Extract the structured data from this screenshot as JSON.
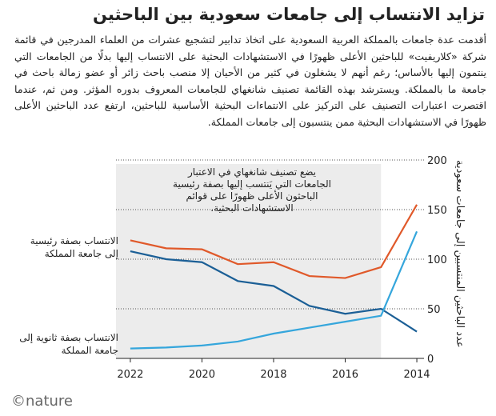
{
  "chart_data": {
    "type": "line",
    "title": "تزايد الانتساب إلى جامعات سعودية بين الباحثين",
    "description": "أقدمت عدة جامعات بالمملكة العربية السعودية على اتخاذ تدابير لتشجيع عشرات من العلماء المدرجين في قائمة شركة «كلاريفيت» للباحثين الأعلى ظهورًا في الاستشهادات البحثية على الانتساب إليها بدلًا من الجامعات التي ينتمون إليها بالأساس؛ رغم أنهم لا يشغلون في كثير من الأحيان إلا منصب باحث زائر أو عضو زمالة باحث في جامعة ما بالمملكة. ويسترشد بهذه القائمة تصنيف شانغهاي للجامعات المعروف بدوره المؤثر. ومن ثم، عندما اقتصرت اعتبارات التصنيف على التركيز على الانتماءات البحثية الأساسية للباحثين، ارتفع عدد الباحثين الأعلى ظهورًا في الاستشهادات البحثية ممن ينتسبون إلى جامعات المملكة.",
    "annotation": "يضع تصنيف شانغهاي في الاعتبار الجامعات التي يَنتسب إليها بصفة رئيسية الباحثون الأعلى ظهورًا على قوائم الاستشهادات البحثية.",
    "y_label": "عدد الباحثين المنتسبين إلى جامعات سعودية",
    "logo": "©nature",
    "x": [
      2014,
      2015,
      2016,
      2017,
      2018,
      2019,
      2020,
      2021,
      2022
    ],
    "series": [
      {
        "color": "#e0592a",
        "values": [
          155,
          92,
          81,
          83,
          97,
          95,
          110,
          111,
          119
        ]
      },
      {
        "name": "الانتساب بصفة رئيسية إلى جامعة المملكة",
        "color": "#1b5f96",
        "values": [
          27,
          50,
          45,
          53,
          73,
          78,
          97,
          100,
          108
        ]
      },
      {
        "name": "الانتساب بصفة ثانوية إلى جامعة المملكة",
        "color": "#35a6dc",
        "values": [
          128,
          43,
          37,
          31,
          25,
          17,
          13,
          11,
          10
        ]
      }
    ],
    "shade_from": 2015,
    "shade_color": "#ececec",
    "xlim": [
      2022.4,
      2013.8
    ],
    "xticks": [
      2022,
      2020,
      2018,
      2016,
      2014
    ],
    "ylim": [
      0,
      200
    ],
    "yticks": [
      0,
      50,
      100,
      150,
      200
    ],
    "grid": true
  }
}
